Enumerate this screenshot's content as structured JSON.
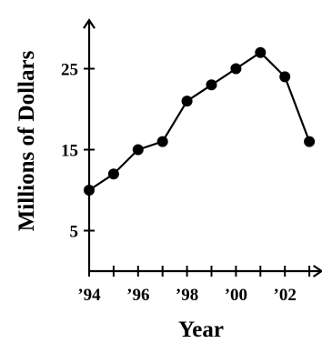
{
  "chart_data": {
    "type": "line",
    "xlabel": "Year",
    "ylabel": "Millions of Dollars",
    "x": [
      1994,
      1995,
      1996,
      1997,
      1998,
      1999,
      2000,
      2001,
      2002,
      2003
    ],
    "values": [
      10,
      12,
      15,
      16,
      21,
      23,
      25,
      27,
      24,
      16
    ],
    "xlim": [
      1994,
      2003.5
    ],
    "ylim": [
      0,
      31
    ],
    "x_tick_values": [
      1994,
      1995,
      1996,
      1997,
      1998,
      1999,
      2000,
      2001,
      2002,
      2003
    ],
    "x_tick_labels": [
      {
        "value": 1994,
        "label": "’94"
      },
      {
        "value": 1996,
        "label": "’96"
      },
      {
        "value": 1998,
        "label": "’98"
      },
      {
        "value": 2000,
        "label": "’00"
      },
      {
        "value": 2002,
        "label": "’02"
      }
    ],
    "y_ticks": [
      5,
      15,
      25
    ],
    "grid": false,
    "legend": "none",
    "line_color": "#000000",
    "marker_color": "#000000"
  }
}
